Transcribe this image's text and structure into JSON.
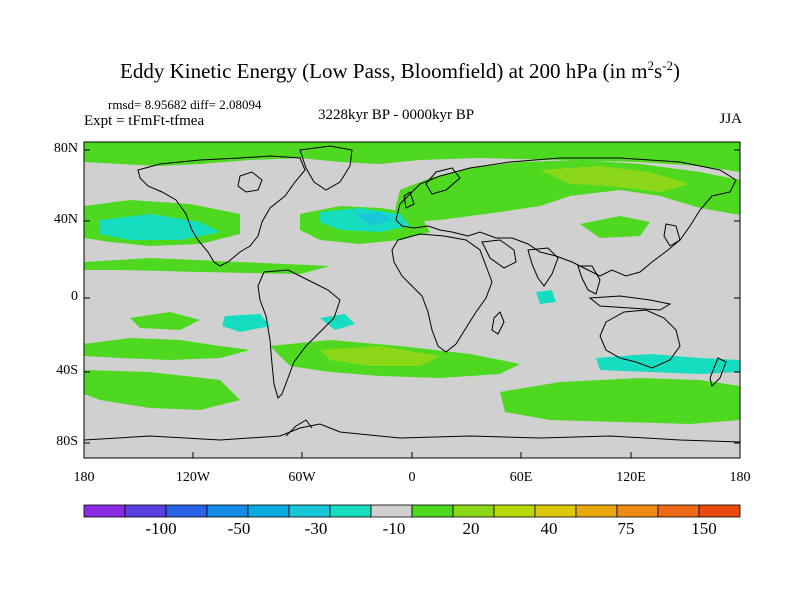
{
  "title": {
    "main": "Eddy Kinetic Energy (Low Pass, Bloomfield) at 200 hPa (in m",
    "sup1": "2",
    "mid": "s",
    "sup2": "-2",
    "end": ")"
  },
  "stats": "rmsd= 8.95682 diff= 2.08094",
  "expt": "Expt = tFmFt-tfmea",
  "period": "3228kyr BP - 0000kyr BP",
  "season": "JJA",
  "map": {
    "projection": "cylindrical equidistant",
    "lon_range": [
      -180,
      180
    ],
    "lat_range": [
      -90,
      90
    ],
    "background_color": "#d0d0d0",
    "y_ticks": [
      "80N",
      "40N",
      "0",
      "40S",
      "80S"
    ],
    "x_ticks": [
      "180",
      "120W",
      "60W",
      "0",
      "60E",
      "120E",
      "180"
    ]
  },
  "colorbar": {
    "colors": [
      "#8a2be2",
      "#5a3fe0",
      "#2a62e6",
      "#1489e6",
      "#0aa9e0",
      "#18c8d8",
      "#16dcc0",
      "#d0d0d0",
      "#4ed820",
      "#8ad818",
      "#b9d80a",
      "#dcc80a",
      "#e8a80a",
      "#ee8a16",
      "#ee6a16",
      "#e84a10"
    ],
    "labels": [
      "-100",
      "-50",
      "-30",
      "-10",
      "20",
      "40",
      "75",
      "150"
    ]
  }
}
